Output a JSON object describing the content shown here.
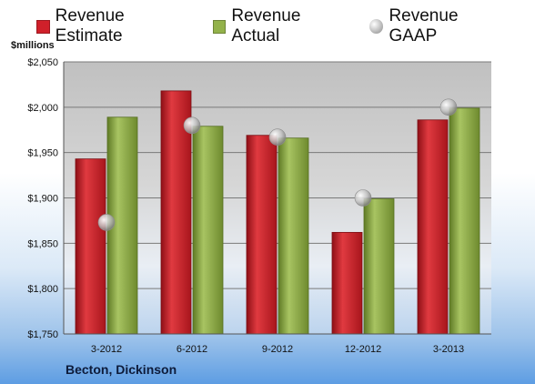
{
  "units_label": "$millions",
  "company": "Becton, Dickinson",
  "colors": {
    "estimate": "#d0202a",
    "actual": "#93b24a",
    "gaap": "#b8b8b8"
  },
  "chart_data": {
    "type": "bar",
    "title": "",
    "xlabel": "",
    "ylabel": "$millions",
    "categories": [
      "3-2012",
      "6-2012",
      "9-2012",
      "12-2012",
      "3-2013"
    ],
    "ylim": [
      1750,
      2050
    ],
    "yticks": [
      "$1,750",
      "$1,800",
      "$1,850",
      "$1,900",
      "$1,950",
      "$2,000",
      "$2,050"
    ],
    "ytick_values": [
      1750,
      1800,
      1850,
      1900,
      1950,
      2000,
      2050
    ],
    "grid": true,
    "legend_position": "top",
    "series": [
      {
        "name": "Revenue Estimate",
        "kind": "bar",
        "values": [
          1943,
          2018,
          1969,
          1862,
          1986
        ]
      },
      {
        "name": "Revenue Actual",
        "kind": "bar",
        "values": [
          1989,
          1979,
          1966,
          1899,
          1999
        ]
      },
      {
        "name": "Revenue GAAP",
        "kind": "point",
        "values": [
          1873,
          1980,
          1967,
          1900,
          2000
        ]
      }
    ]
  }
}
